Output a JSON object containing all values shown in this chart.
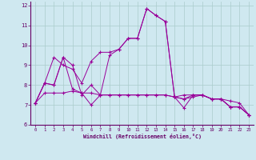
{
  "background_color": "#cfe8f0",
  "grid_color": "#aacccc",
  "line_color": "#990099",
  "xlabel": "Windchill (Refroidissement éolien,°C)",
  "xlim": [
    -0.5,
    23.5
  ],
  "ylim": [
    6,
    12.2
  ],
  "yticks": [
    6,
    7,
    8,
    9,
    10,
    11,
    12
  ],
  "xticks": [
    0,
    1,
    2,
    3,
    4,
    5,
    6,
    7,
    8,
    9,
    10,
    11,
    12,
    13,
    14,
    15,
    16,
    17,
    18,
    19,
    20,
    21,
    22,
    23
  ],
  "s1": [
    7.1,
    8.1,
    8.0,
    9.4,
    7.8,
    7.6,
    7.0,
    7.5,
    9.5,
    9.8,
    10.35,
    10.35,
    11.85,
    11.5,
    11.2,
    7.4,
    7.3,
    7.5,
    7.5,
    7.3,
    7.3,
    6.9,
    6.9,
    6.5
  ],
  "s2": [
    7.1,
    7.6,
    7.6,
    7.6,
    7.7,
    7.6,
    7.6,
    7.5,
    7.5,
    7.5,
    7.5,
    7.5,
    7.5,
    7.5,
    7.5,
    7.4,
    7.3,
    7.4,
    7.5,
    7.3,
    7.3,
    7.2,
    7.1,
    6.5
  ],
  "s3": [
    7.1,
    8.1,
    9.4,
    9.0,
    8.8,
    8.1,
    9.2,
    9.65,
    9.65,
    9.8,
    10.35,
    10.35,
    11.85,
    11.5,
    11.2,
    7.4,
    7.5,
    7.5,
    7.5,
    7.3,
    7.3,
    6.9,
    6.9,
    6.5
  ],
  "s4": [
    7.1,
    8.1,
    8.0,
    9.4,
    9.0,
    7.5,
    8.0,
    7.5,
    7.5,
    7.5,
    7.5,
    7.5,
    7.5,
    7.5,
    7.5,
    7.4,
    6.85,
    7.5,
    7.5,
    7.3,
    7.3,
    6.9,
    6.9,
    6.5
  ]
}
